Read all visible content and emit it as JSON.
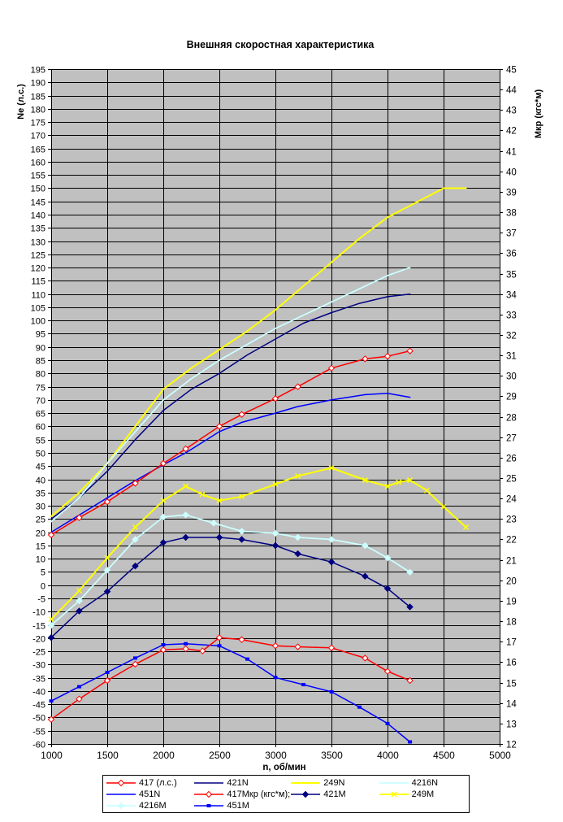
{
  "chart_data": {
    "type": "line",
    "title": "Внешняя скоростная характеристика",
    "grid": true,
    "plot_bg_color": "#c0c0c0",
    "grid_color": "#000000",
    "legend_position": "bottom",
    "x_axis": {
      "label": "n, об/мин",
      "min": 1000,
      "max": 5000,
      "tick_step": 500,
      "ticks": [
        1000,
        1500,
        2000,
        2500,
        3000,
        3500,
        4000,
        4500,
        5000
      ]
    },
    "y_axis_left": {
      "label": "Ne (л.с.)",
      "min": -60,
      "max": 195,
      "tick_step": 5,
      "ticks": [
        195,
        190,
        185,
        180,
        175,
        170,
        165,
        160,
        155,
        150,
        145,
        140,
        135,
        130,
        125,
        120,
        115,
        110,
        105,
        100,
        95,
        90,
        85,
        80,
        75,
        70,
        65,
        60,
        55,
        50,
        45,
        40,
        35,
        30,
        25,
        20,
        15,
        10,
        5,
        0,
        -5,
        -10,
        -15,
        -20,
        -25,
        -30,
        -35,
        -40,
        -45,
        -50,
        -55,
        -60
      ]
    },
    "y_axis_right": {
      "label": "Мкр (кгс*м)",
      "min": 12,
      "max": 45,
      "tick_step": 1,
      "ticks": [
        45,
        44,
        43,
        42,
        41,
        40,
        39,
        38,
        37,
        36,
        35,
        34,
        33,
        32,
        31,
        30,
        29,
        28,
        27,
        26,
        25,
        24,
        23,
        22,
        21,
        20,
        19,
        18,
        17,
        16,
        15,
        14,
        13,
        12
      ]
    },
    "series": [
      {
        "name": "417 (л.с.)",
        "axis": "left",
        "color": "#ff0000",
        "marker": "open-diamond",
        "line_width": 1.5,
        "points": [
          [
            1000,
            19
          ],
          [
            1250,
            25.5
          ],
          [
            1500,
            31.5
          ],
          [
            1750,
            38.5
          ],
          [
            2000,
            46
          ],
          [
            2200,
            51.5
          ],
          [
            2500,
            60
          ],
          [
            2700,
            64.5
          ],
          [
            3000,
            70.5
          ],
          [
            3200,
            75
          ],
          [
            3500,
            82
          ],
          [
            3800,
            85.5
          ],
          [
            4000,
            86.5
          ],
          [
            4200,
            88.5
          ]
        ]
      },
      {
        "name": "421N",
        "axis": "left",
        "color": "#000080",
        "marker": "none",
        "line_width": 1.5,
        "points": [
          [
            1000,
            25
          ],
          [
            1250,
            33
          ],
          [
            1500,
            43
          ],
          [
            1750,
            55
          ],
          [
            2000,
            66
          ],
          [
            2250,
            74
          ],
          [
            2500,
            80
          ],
          [
            2750,
            87
          ],
          [
            3000,
            93
          ],
          [
            3250,
            99
          ],
          [
            3500,
            103
          ],
          [
            3750,
            106.5
          ],
          [
            4000,
            109
          ],
          [
            4200,
            110
          ]
        ]
      },
      {
        "name": "249N",
        "axis": "left",
        "color": "#ffff00",
        "marker": "none",
        "line_width": 2,
        "points": [
          [
            1000,
            26
          ],
          [
            1250,
            35
          ],
          [
            1500,
            46
          ],
          [
            1750,
            60
          ],
          [
            2000,
            74
          ],
          [
            2250,
            82
          ],
          [
            2500,
            89
          ],
          [
            2750,
            96
          ],
          [
            3000,
            104
          ],
          [
            3250,
            113
          ],
          [
            3500,
            122
          ],
          [
            3750,
            131
          ],
          [
            4000,
            139
          ],
          [
            4250,
            144.5
          ],
          [
            4500,
            150
          ],
          [
            4700,
            150
          ]
        ]
      },
      {
        "name": "4216N",
        "axis": "left",
        "color": "#ccffff",
        "marker": "none",
        "line_width": 1.75,
        "points": [
          [
            1000,
            24
          ],
          [
            1250,
            33
          ],
          [
            1500,
            46
          ],
          [
            1750,
            58
          ],
          [
            2000,
            70
          ],
          [
            2250,
            78
          ],
          [
            2500,
            85
          ],
          [
            2750,
            91
          ],
          [
            3000,
            97
          ],
          [
            3250,
            102
          ],
          [
            3500,
            107
          ],
          [
            3750,
            112
          ],
          [
            4000,
            117
          ],
          [
            4200,
            120
          ]
        ]
      },
      {
        "name": "451N",
        "axis": "left",
        "color": "#0000ff",
        "marker": "none",
        "line_width": 1.5,
        "points": [
          [
            1000,
            20
          ],
          [
            1250,
            26.5
          ],
          [
            1500,
            33
          ],
          [
            1750,
            39.5
          ],
          [
            2000,
            45.5
          ],
          [
            2200,
            50
          ],
          [
            2500,
            58
          ],
          [
            2700,
            61.5
          ],
          [
            3000,
            65
          ],
          [
            3200,
            67.5
          ],
          [
            3500,
            70
          ],
          [
            3800,
            72
          ],
          [
            4000,
            72.5
          ],
          [
            4200,
            71
          ]
        ]
      },
      {
        "name": "417Мкр (кгс*м);",
        "axis": "right",
        "color": "#ff0000",
        "marker": "open-diamond",
        "line_width": 1.5,
        "points": [
          [
            1000,
            13.2
          ],
          [
            1250,
            14.2
          ],
          [
            1500,
            15.1
          ],
          [
            1750,
            15.9
          ],
          [
            2000,
            16.6
          ],
          [
            2200,
            16.65
          ],
          [
            2350,
            16.55
          ],
          [
            2500,
            17.2
          ],
          [
            2700,
            17.1
          ],
          [
            3000,
            16.8
          ],
          [
            3200,
            16.75
          ],
          [
            3500,
            16.7
          ],
          [
            3800,
            16.2
          ],
          [
            4000,
            15.55
          ],
          [
            4200,
            15.1
          ]
        ]
      },
      {
        "name": "421M",
        "axis": "right",
        "color": "#000080",
        "marker": "filled-diamond",
        "line_width": 1.5,
        "points": [
          [
            1000,
            17.2
          ],
          [
            1250,
            18.5
          ],
          [
            1500,
            19.45
          ],
          [
            1750,
            20.7
          ],
          [
            2000,
            21.85
          ],
          [
            2200,
            22.1
          ],
          [
            2500,
            22.1
          ],
          [
            2700,
            22.0
          ],
          [
            3000,
            21.7
          ],
          [
            3200,
            21.3
          ],
          [
            3500,
            20.9
          ],
          [
            3800,
            20.2
          ],
          [
            4000,
            19.6
          ],
          [
            4200,
            18.7
          ]
        ]
      },
      {
        "name": "249M",
        "axis": "right",
        "color": "#ffff00",
        "marker": "cross",
        "line_width": 2,
        "points": [
          [
            1000,
            18.1
          ],
          [
            1250,
            19.5
          ],
          [
            1500,
            21.1
          ],
          [
            1750,
            22.6
          ],
          [
            2000,
            23.9
          ],
          [
            2200,
            24.6
          ],
          [
            2350,
            24.2
          ],
          [
            2500,
            23.9
          ],
          [
            2700,
            24.1
          ],
          [
            3000,
            24.7
          ],
          [
            3200,
            25.1
          ],
          [
            3500,
            25.5
          ],
          [
            3800,
            24.9
          ],
          [
            4000,
            24.6
          ],
          [
            4100,
            24.8
          ],
          [
            4200,
            24.9
          ],
          [
            4350,
            24.4
          ],
          [
            4500,
            23.6
          ],
          [
            4700,
            22.6
          ]
        ]
      },
      {
        "name": "4216M",
        "axis": "right",
        "color": "#ccffff",
        "marker": "filled-diamond",
        "line_width": 1.75,
        "points": [
          [
            1000,
            17.8
          ],
          [
            1250,
            19.0
          ],
          [
            1500,
            20.5
          ],
          [
            1750,
            22.0
          ],
          [
            2000,
            23.1
          ],
          [
            2200,
            23.2
          ],
          [
            2450,
            22.8
          ],
          [
            2700,
            22.4
          ],
          [
            3000,
            22.3
          ],
          [
            3200,
            22.1
          ],
          [
            3500,
            22.0
          ],
          [
            3800,
            21.7
          ],
          [
            4000,
            21.1
          ],
          [
            4200,
            20.4
          ]
        ]
      },
      {
        "name": "451M",
        "axis": "right",
        "color": "#0000ff",
        "marker": "square",
        "line_width": 1.5,
        "points": [
          [
            1000,
            14.1
          ],
          [
            1250,
            14.8
          ],
          [
            1500,
            15.5
          ],
          [
            1750,
            16.2
          ],
          [
            2000,
            16.85
          ],
          [
            2200,
            16.9
          ],
          [
            2500,
            16.8
          ],
          [
            2750,
            16.15
          ],
          [
            3000,
            15.25
          ],
          [
            3250,
            14.9
          ],
          [
            3500,
            14.55
          ],
          [
            3750,
            13.8
          ],
          [
            4000,
            13.0
          ],
          [
            4200,
            12.1
          ]
        ]
      }
    ]
  }
}
